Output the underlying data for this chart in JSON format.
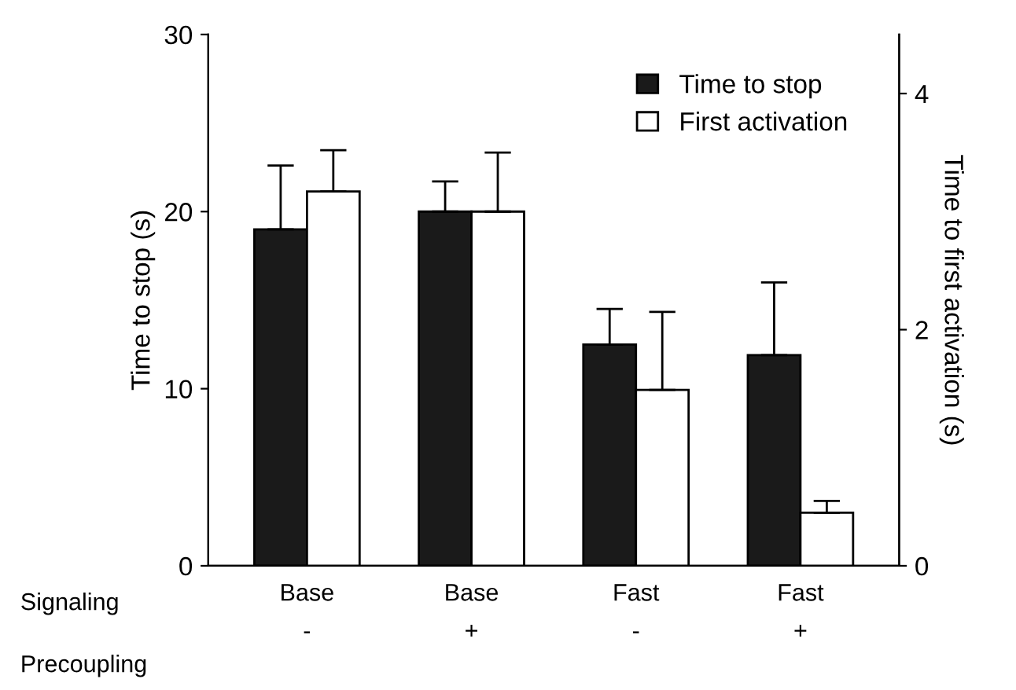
{
  "chart_data": {
    "type": "bar",
    "categories": [
      "Base\n-",
      "Base\n+",
      "Fast\n-",
      "Fast\n+"
    ],
    "series": [
      {
        "name": "Time to stop",
        "color": "#1a1a1a",
        "values": [
          19.0,
          20.0,
          12.5,
          11.9
        ],
        "errors": [
          [
            19.0,
            22.6
          ],
          [
            20.0,
            21.7
          ],
          [
            12.5,
            14.5
          ],
          [
            11.9,
            16.0
          ]
        ]
      },
      {
        "name": "First activation",
        "color": "#ffffff",
        "axis": "y2",
        "values": [
          3.17,
          3.0,
          1.49,
          0.45
        ],
        "errors": [
          [
            3.17,
            3.52
          ],
          [
            3.0,
            3.5
          ],
          [
            1.49,
            2.15
          ],
          [
            0.45,
            0.55
          ]
        ]
      }
    ],
    "ylabel": "Time to stop (s)",
    "y2label": "Time to first activation (s)",
    "ylim": [
      0,
      30
    ],
    "yticks": [
      0,
      10,
      20,
      30
    ],
    "y2lim": [
      0,
      4.5
    ],
    "y2ticks": [
      0,
      2,
      4
    ],
    "annotations": [
      "Signaling",
      "Precoupling"
    ],
    "legend": "top right",
    "grid": false
  }
}
